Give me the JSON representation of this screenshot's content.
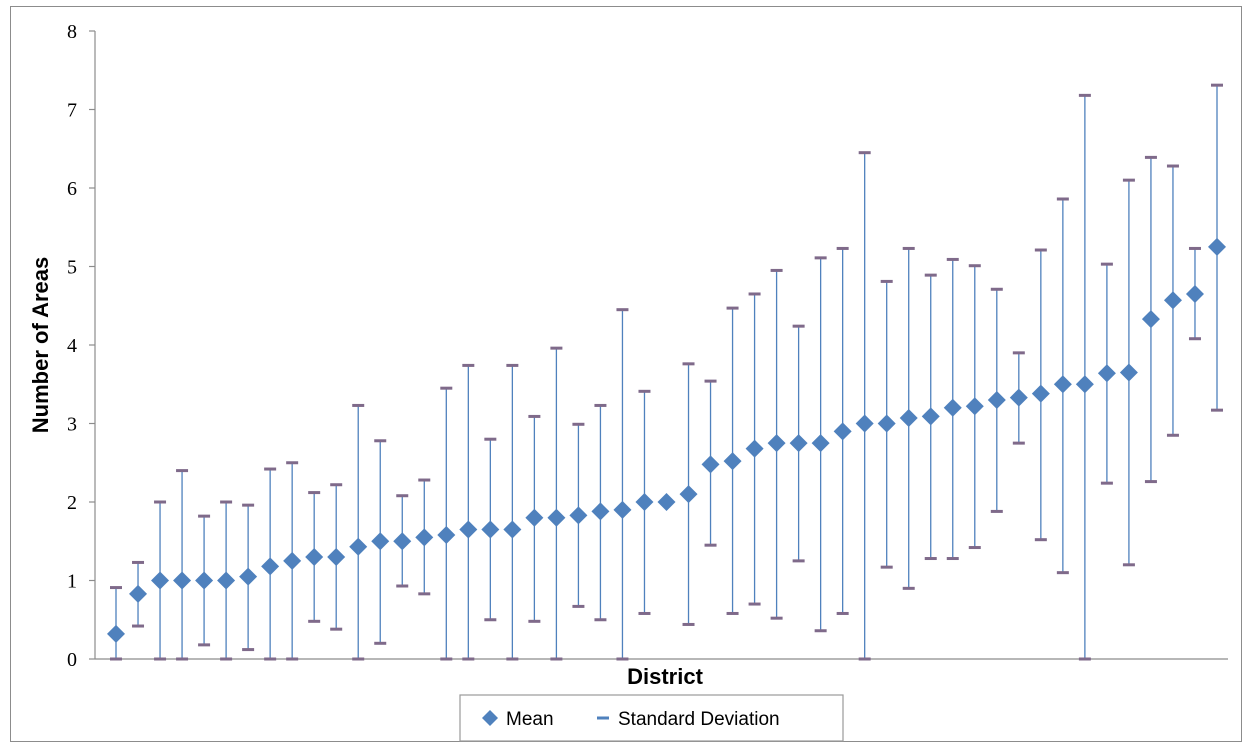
{
  "chart_data": {
    "type": "scatter",
    "xlabel": "District",
    "ylabel": "Number of Areas",
    "ylim": [
      0,
      8
    ],
    "yticks": [
      0,
      1,
      2,
      3,
      4,
      5,
      6,
      7,
      8
    ],
    "grid": false,
    "legend_position": "bottom",
    "series": [
      {
        "name": "Mean",
        "marker": "diamond",
        "color": "#4F81BD",
        "values": [
          0.32,
          0.83,
          1.0,
          1.0,
          1.0,
          1.0,
          1.05,
          1.18,
          1.25,
          1.3,
          1.3,
          1.43,
          1.5,
          1.5,
          1.55,
          1.58,
          1.65,
          1.65,
          1.65,
          1.8,
          1.8,
          1.83,
          1.88,
          1.9,
          2.0,
          2.0,
          2.1,
          2.48,
          2.52,
          2.68,
          2.75,
          2.75,
          2.75,
          2.9,
          3.0,
          3.0,
          3.07,
          3.09,
          3.2,
          3.22,
          3.3,
          3.33,
          3.38,
          3.5,
          3.5,
          3.64,
          3.65,
          4.33,
          4.57,
          4.65,
          5.25
        ]
      },
      {
        "name": "Standard Deviation",
        "marker": "dash",
        "color": "#4F81BD",
        "cap_color": "#7F6A8A",
        "lower": [
          0.0,
          0.42,
          0.0,
          0.0,
          0.18,
          0.0,
          0.12,
          0.0,
          0.0,
          0.48,
          0.38,
          0.0,
          0.2,
          0.93,
          0.83,
          0.0,
          0.0,
          0.5,
          0.0,
          0.48,
          0.0,
          0.67,
          0.5,
          0.0,
          0.58,
          2.0,
          0.44,
          1.45,
          0.58,
          0.7,
          0.52,
          1.25,
          0.36,
          0.58,
          0.0,
          1.17,
          0.9,
          1.28,
          1.28,
          1.42,
          1.88,
          2.75,
          1.52,
          1.1,
          0.0,
          2.24,
          1.2,
          2.26,
          2.85,
          4.08,
          3.17
        ],
        "upper": [
          0.91,
          1.23,
          2.0,
          2.4,
          1.82,
          2.0,
          1.96,
          2.42,
          2.5,
          2.12,
          2.22,
          3.23,
          2.78,
          2.08,
          2.28,
          3.45,
          3.74,
          2.8,
          3.74,
          3.09,
          3.96,
          2.99,
          3.23,
          4.45,
          3.41,
          2.0,
          3.76,
          3.54,
          4.47,
          4.65,
          4.95,
          4.24,
          5.11,
          5.23,
          6.45,
          4.81,
          5.23,
          4.89,
          5.09,
          5.01,
          4.71,
          3.9,
          5.21,
          5.86,
          7.18,
          5.03,
          6.1,
          6.39,
          6.28,
          5.23,
          7.31
        ]
      }
    ]
  }
}
